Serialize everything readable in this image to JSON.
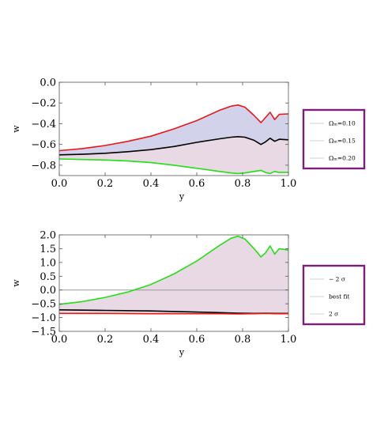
{
  "chart_data": [
    {
      "type": "line",
      "xlabel": "y",
      "ylabel": "w",
      "xlim": [
        0.0,
        1.0
      ],
      "ylim": [
        -0.9,
        0.0
      ],
      "xticks": [
        "0.0",
        "0.2",
        "0.4",
        "0.6",
        "0.8",
        "1.0"
      ],
      "yticks": [
        "0.0",
        "−0.2",
        "−0.4",
        "−0.6",
        "−0.8"
      ],
      "band_fill": "#e8d9e4",
      "band_fill_upper": "#d2d3ea",
      "grid": false,
      "legend": {
        "placement": "right",
        "border_color": "#7b1f7b",
        "entries": [
          {
            "label": "Ωₘ=0.10",
            "color": "#b9c9b9"
          },
          {
            "label": "Ωₘ=0.15",
            "color": "#b9c9b9"
          },
          {
            "label": "Ωₘ=0.20",
            "color": "#b9c9b9"
          }
        ]
      },
      "series": [
        {
          "color": "#e8171a",
          "x": [
            0.0,
            0.1,
            0.2,
            0.3,
            0.4,
            0.5,
            0.6,
            0.7,
            0.75,
            0.78,
            0.81,
            0.85,
            0.88,
            0.9,
            0.92,
            0.94,
            0.96,
            1.0
          ],
          "y": [
            -0.66,
            -0.64,
            -0.61,
            -0.57,
            -0.52,
            -0.45,
            -0.37,
            -0.27,
            -0.23,
            -0.22,
            -0.24,
            -0.32,
            -0.39,
            -0.34,
            -0.29,
            -0.36,
            -0.31,
            -0.305
          ]
        },
        {
          "color": "#000000",
          "x": [
            0.0,
            0.1,
            0.2,
            0.3,
            0.4,
            0.5,
            0.6,
            0.7,
            0.75,
            0.78,
            0.81,
            0.85,
            0.88,
            0.9,
            0.92,
            0.94,
            0.96,
            1.0
          ],
          "y": [
            -0.7,
            -0.695,
            -0.685,
            -0.67,
            -0.65,
            -0.62,
            -0.58,
            -0.545,
            -0.53,
            -0.525,
            -0.53,
            -0.56,
            -0.6,
            -0.575,
            -0.54,
            -0.57,
            -0.55,
            -0.555
          ]
        },
        {
          "color": "#22e014",
          "x": [
            0.0,
            0.1,
            0.2,
            0.3,
            0.4,
            0.5,
            0.6,
            0.7,
            0.75,
            0.78,
            0.81,
            0.85,
            0.88,
            0.9,
            0.92,
            0.94,
            0.96,
            1.0
          ],
          "y": [
            -0.74,
            -0.745,
            -0.75,
            -0.76,
            -0.775,
            -0.8,
            -0.83,
            -0.86,
            -0.875,
            -0.88,
            -0.875,
            -0.86,
            -0.85,
            -0.87,
            -0.88,
            -0.86,
            -0.87,
            -0.868
          ]
        }
      ]
    },
    {
      "type": "line",
      "xlabel": "y",
      "ylabel": "w",
      "xlim": [
        0.0,
        1.0
      ],
      "ylim": [
        -1.5,
        2.0
      ],
      "xticks": [
        "0.0",
        "0.2",
        "0.4",
        "0.6",
        "0.8",
        "1.0"
      ],
      "yticks": [
        "2.0",
        "1.5",
        "1.0",
        "0.5",
        "0.0",
        "−0.5",
        "−1.0",
        "−1.5"
      ],
      "band_fill": "#e8d9e4",
      "reference_line": 0.0,
      "grid": false,
      "legend": {
        "placement": "right",
        "border_color": "#7b1f7b",
        "entries": [
          {
            "label": "− 2 σ",
            "color": "#b9c9b9"
          },
          {
            "label": "best fit",
            "color": "#b9c9b9"
          },
          {
            "label": "2 σ",
            "color": "#b9c9b9"
          }
        ]
      },
      "series": [
        {
          "color": "#22e014",
          "x": [
            0.0,
            0.1,
            0.2,
            0.3,
            0.4,
            0.5,
            0.6,
            0.7,
            0.75,
            0.78,
            0.81,
            0.85,
            0.88,
            0.9,
            0.92,
            0.94,
            0.96,
            1.0
          ],
          "y": [
            -0.52,
            -0.42,
            -0.27,
            -0.07,
            0.2,
            0.58,
            1.05,
            1.62,
            1.88,
            1.95,
            1.85,
            1.5,
            1.2,
            1.35,
            1.6,
            1.3,
            1.5,
            1.45
          ]
        },
        {
          "color": "#000000",
          "x": [
            0.0,
            0.2,
            0.4,
            0.6,
            0.7,
            0.78,
            0.85,
            0.9,
            0.94,
            1.0
          ],
          "y": [
            -0.72,
            -0.74,
            -0.76,
            -0.8,
            -0.82,
            -0.84,
            -0.85,
            -0.84,
            -0.85,
            -0.85
          ]
        },
        {
          "color": "#e8171a",
          "x": [
            0.0,
            0.2,
            0.4,
            0.6,
            0.7,
            0.78,
            0.85,
            0.9,
            0.94,
            1.0
          ],
          "y": [
            -0.85,
            -0.85,
            -0.86,
            -0.86,
            -0.86,
            -0.87,
            -0.86,
            -0.85,
            -0.86,
            -0.86
          ]
        }
      ]
    }
  ]
}
